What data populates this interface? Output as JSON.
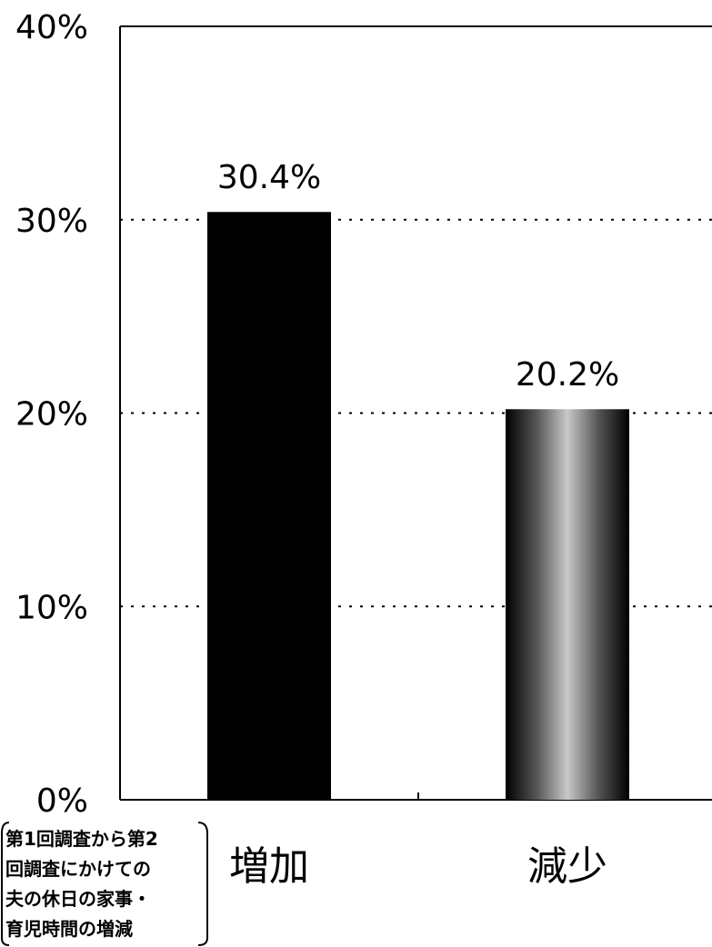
{
  "chart_data": {
    "type": "bar",
    "categories": [
      "増加",
      "減少"
    ],
    "values": [
      30.4,
      20.2
    ],
    "data_labels": [
      "30.4%",
      "20.2%"
    ],
    "ylim": [
      0,
      40
    ],
    "yticks": [
      0,
      10,
      20,
      30,
      40
    ],
    "ytick_labels": [
      "0%",
      "10%",
      "20%",
      "30%",
      "40%"
    ],
    "grid": "dotted horizontal",
    "bar_colors": [
      "#000000",
      "gradient-gray"
    ],
    "xlabel_note": [
      "第1回調査から第2",
      "回調査にかけての",
      "夫の休日の家事・",
      "育児時間の増減"
    ]
  }
}
